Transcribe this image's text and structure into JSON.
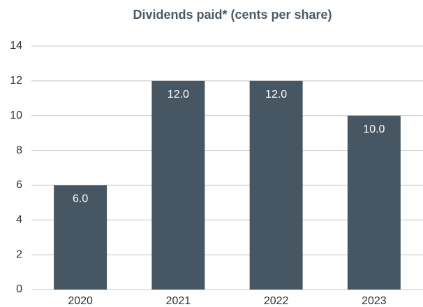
{
  "chart_data": {
    "type": "bar",
    "title": "Dividends paid* (cents per share)",
    "categories": [
      "2020",
      "2021",
      "2022",
      "2023"
    ],
    "values": [
      6,
      12,
      12,
      10
    ],
    "value_labels": [
      "6.0",
      "12.0",
      "12.0",
      "10.0"
    ],
    "color": "#465763",
    "ylim": [
      0,
      14
    ],
    "yticks": [
      0,
      2,
      4,
      6,
      8,
      10,
      12,
      14
    ],
    "grid": true
  }
}
